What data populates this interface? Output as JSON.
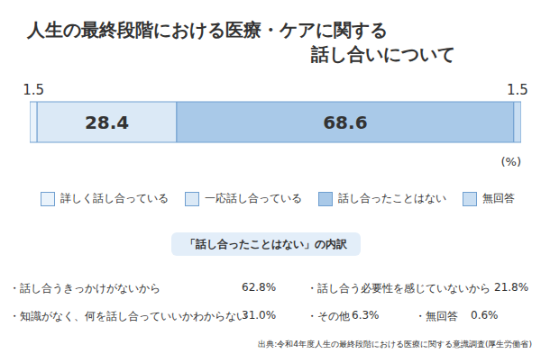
{
  "chart_data": {
    "type": "bar",
    "title": [
      "人生の最終段階における医療・ケアに関する",
      "話し合いについて"
    ],
    "orientation": "horizontal",
    "stacked": true,
    "data_labels": true,
    "tick_labels": false,
    "legend": "bottom",
    "xlabel": "(%)",
    "xlim": [
      0,
      100
    ],
    "series": [
      {
        "name": "詳しく話し合っている",
        "color": "#eaf3fb",
        "values": [
          1.5
        ]
      },
      {
        "name": "一応話し合っている",
        "color": "#dbe9f6",
        "values": [
          28.4
        ]
      },
      {
        "name": "話し合ったことはない",
        "color": "#a9c9e8",
        "values": [
          68.6
        ]
      },
      {
        "name": "無回答",
        "color": "#c9def2",
        "values": [
          1.5
        ]
      }
    ]
  },
  "breakdown": {
    "title": "「話し合ったことはない」の内訳",
    "items": [
      {
        "label": "・話し合うきっかけがないから",
        "value": "62.8%"
      },
      {
        "label": "・話し合う必要性を感じていないから",
        "value": "21.8%"
      },
      {
        "label": "・知識がなく、何を話し合っていいかわからない",
        "value": "31.0%"
      },
      {
        "label": "・その他",
        "value": "6.3%"
      },
      {
        "label": "・無回答",
        "value": "0.6%"
      }
    ]
  },
  "source": "出典:令和4年度人生の最終段階における医療に関する意識調査(厚生労働省)"
}
